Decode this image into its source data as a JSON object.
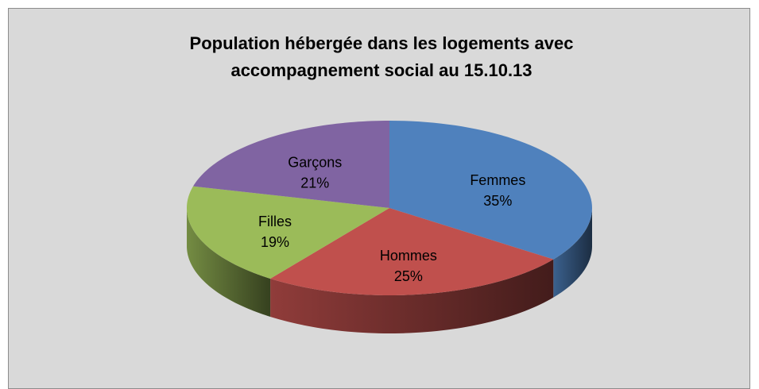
{
  "chart_data": {
    "type": "pie",
    "title": "Population hébergée dans les logements avec accompagnement social au 15.10.13",
    "categories": [
      "Femmes",
      "Hommes",
      "Filles",
      "Garçons"
    ],
    "values": [
      35,
      25,
      19,
      21
    ],
    "value_labels": [
      "35%",
      "25%",
      "19%",
      "21%"
    ],
    "colors": [
      "#4f81bd",
      "#c0504d",
      "#9bbb59",
      "#8064a2"
    ]
  }
}
